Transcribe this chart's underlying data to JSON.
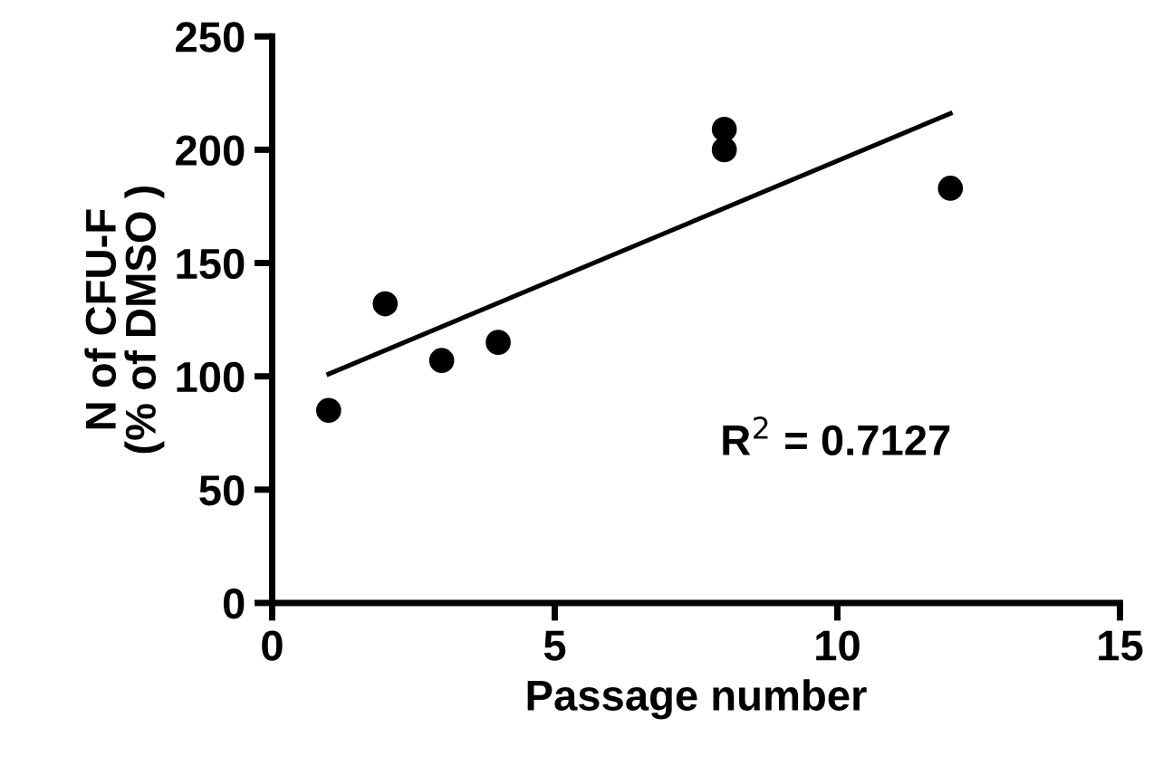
{
  "chart_data": {
    "type": "scatter",
    "xlabel": "Passage number",
    "ylabel": "N of CFU-F\n(% of DMSO )",
    "series": [
      {
        "color": "#000000",
        "marker": "circle",
        "x": [
          1,
          2,
          3,
          4,
          8,
          8,
          12
        ],
        "values": [
          85,
          132,
          107,
          115,
          209,
          200,
          183
        ]
      },
      {
        "type": "line",
        "color": "#000000",
        "marker": "none",
        "line_style": "solid",
        "x": [
          1,
          12
        ],
        "values": [
          101,
          216
        ]
      }
    ],
    "xlim": [
      0,
      15
    ],
    "xticks": [
      0,
      5,
      10,
      15
    ],
    "ylim": [
      0,
      250
    ],
    "yticks": [
      0,
      50,
      100,
      150,
      200,
      250
    ],
    "grid": false,
    "legend": false,
    "annotations": [
      "R$^{2}$ = 0.7127"
    ]
  }
}
